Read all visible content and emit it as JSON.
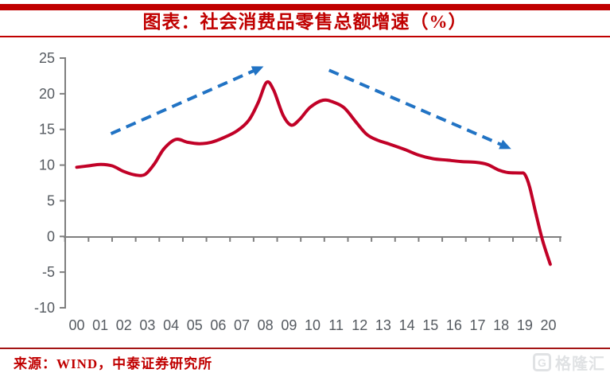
{
  "header": {
    "title": "图表：社会消费品零售总额增速（%）"
  },
  "footer": {
    "source": "来源：WIND，中泰证券研究所",
    "watermark": {
      "icon_letter": "G",
      "text": "格隆汇"
    }
  },
  "colors": {
    "title_red": "#c00000",
    "rule_red": "#c00000",
    "bottom_rule_red": "#a31414",
    "curve_red": "#c10127",
    "arrow_blue": "#2173c4",
    "axis_gray": "#7f7f7f",
    "label_gray": "#555a60",
    "watermark_gray": "#e0e2e4"
  },
  "chart_data": {
    "type": "line",
    "title": "社会消费品零售总额增速（%）",
    "xlabel": "",
    "ylabel": "",
    "ylim": [
      -10,
      25
    ],
    "x_years": [
      2000,
      2020
    ],
    "grid": false,
    "legend": "none",
    "x_tick_labels": [
      "00",
      "01",
      "02",
      "03",
      "04",
      "05",
      "06",
      "07",
      "08",
      "09",
      "10",
      "11",
      "12",
      "13",
      "14",
      "15",
      "16",
      "17",
      "18",
      "19",
      "20"
    ],
    "y_ticks": [
      25,
      20,
      15,
      10,
      5,
      0,
      -5,
      -10
    ],
    "series": [
      {
        "name": "社会消费品零售总额增速(%)",
        "points": [
          [
            0.0,
            9.7
          ],
          [
            0.5,
            9.9
          ],
          [
            1.0,
            10.1
          ],
          [
            1.5,
            9.9
          ],
          [
            2.0,
            9.1
          ],
          [
            2.5,
            8.6
          ],
          [
            2.9,
            8.7
          ],
          [
            3.3,
            10.2
          ],
          [
            3.7,
            12.3
          ],
          [
            4.2,
            13.6
          ],
          [
            4.7,
            13.2
          ],
          [
            5.2,
            13.0
          ],
          [
            5.7,
            13.2
          ],
          [
            6.2,
            13.8
          ],
          [
            6.8,
            14.8
          ],
          [
            7.3,
            16.3
          ],
          [
            7.7,
            18.8
          ],
          [
            8.05,
            21.6
          ],
          [
            8.35,
            20.5
          ],
          [
            8.75,
            17.0
          ],
          [
            9.1,
            15.6
          ],
          [
            9.45,
            16.4
          ],
          [
            9.9,
            18.1
          ],
          [
            10.45,
            19.1
          ],
          [
            10.9,
            18.8
          ],
          [
            11.35,
            18.0
          ],
          [
            11.85,
            16.0
          ],
          [
            12.3,
            14.3
          ],
          [
            12.75,
            13.5
          ],
          [
            13.3,
            12.9
          ],
          [
            13.9,
            12.2
          ],
          [
            14.5,
            11.4
          ],
          [
            15.1,
            10.9
          ],
          [
            15.7,
            10.7
          ],
          [
            16.3,
            10.5
          ],
          [
            16.9,
            10.4
          ],
          [
            17.4,
            10.1
          ],
          [
            17.9,
            9.3
          ],
          [
            18.3,
            8.95
          ],
          [
            18.8,
            8.9
          ],
          [
            19.0,
            8.7
          ],
          [
            19.2,
            7.0
          ],
          [
            19.45,
            3.5
          ],
          [
            19.75,
            -0.5
          ],
          [
            20.08,
            -3.9
          ]
        ]
      }
    ],
    "annotations": {
      "arrows": [
        {
          "from_xy": [
            1.45,
            14.4
          ],
          "to_xy": [
            7.9,
            23.8
          ],
          "style": "dashed",
          "direction": "up"
        },
        {
          "from_xy": [
            10.7,
            23.3
          ],
          "to_xy": [
            18.4,
            12.3
          ],
          "style": "dashed",
          "direction": "down"
        }
      ]
    }
  }
}
